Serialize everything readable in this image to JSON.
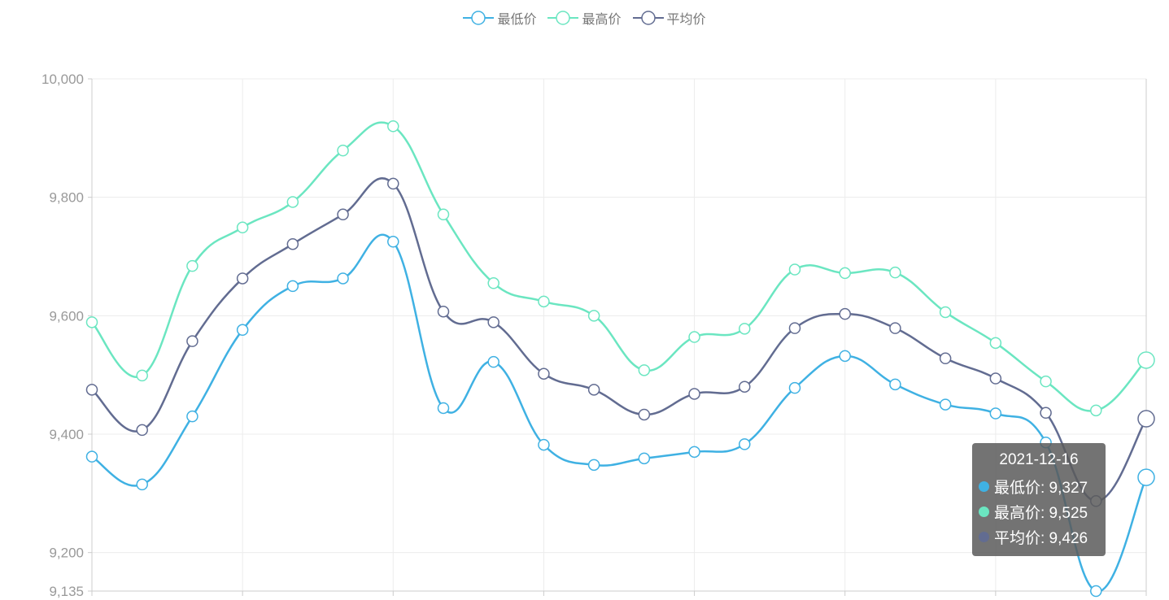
{
  "legend": {
    "items": [
      {
        "label": "最低价",
        "color": "#3fb1e3",
        "icon": "line-circle-icon"
      },
      {
        "label": "最高价",
        "color": "#6be6c1",
        "icon": "line-circle-icon"
      },
      {
        "label": "平均价",
        "color": "#626c91",
        "icon": "line-circle-icon"
      }
    ]
  },
  "tooltip": {
    "title": "2021-12-16",
    "rows": [
      {
        "label": "最低价: 9,327",
        "color": "#3fb1e3"
      },
      {
        "label": "最高价: 9,525",
        "color": "#6be6c1"
      },
      {
        "label": "平均价: 9,426",
        "color": "#626c91"
      }
    ]
  },
  "chart_data": {
    "type": "line",
    "smooth": true,
    "ylim": [
      9135,
      10000
    ],
    "y_ticks": [
      {
        "value": 10000,
        "label": "10,000"
      },
      {
        "value": 9800,
        "label": "9,800"
      },
      {
        "value": 9600,
        "label": "9,600"
      },
      {
        "value": 9400,
        "label": "9,400"
      },
      {
        "value": 9200,
        "label": "9,200"
      },
      {
        "value": 9135,
        "label": "9,135"
      }
    ],
    "grid": true,
    "legend_position": "top-center",
    "series": [
      {
        "name": "最低价",
        "color": "#3fb1e3",
        "values": [
          9362,
          9315,
          9430,
          9576,
          9650,
          9663,
          9725,
          9444,
          9522,
          9382,
          9348,
          9359,
          9370,
          9383,
          9478,
          9532,
          9484,
          9450,
          9435,
          9386,
          9135,
          9327
        ]
      },
      {
        "name": "最高价",
        "color": "#6be6c1",
        "values": [
          9589,
          9499,
          9684,
          9749,
          9792,
          9879,
          9920,
          9771,
          9655,
          9624,
          9600,
          9508,
          9564,
          9578,
          9678,
          9672,
          9673,
          9606,
          9554,
          9489,
          9440,
          9525
        ]
      },
      {
        "name": "平均价",
        "color": "#626c91",
        "values": [
          9475,
          9407,
          9557,
          9663,
          9721,
          9771,
          9823,
          9607,
          9589,
          9502,
          9475,
          9433,
          9468,
          9480,
          9579,
          9603,
          9579,
          9528,
          9494,
          9436,
          9287,
          9426
        ]
      }
    ]
  }
}
